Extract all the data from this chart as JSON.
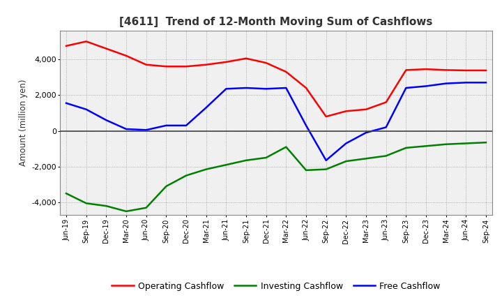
{
  "title": "[4611]  Trend of 12-Month Moving Sum of Cashflows",
  "ylabel": "Amount (million yen)",
  "background_color": "#ffffff",
  "plot_bg_color": "#f0f0f0",
  "grid_color": "#aaaaaa",
  "x_labels": [
    "Jun-19",
    "Sep-19",
    "Dec-19",
    "Mar-20",
    "Jun-20",
    "Sep-20",
    "Dec-20",
    "Mar-21",
    "Jun-21",
    "Sep-21",
    "Dec-21",
    "Mar-22",
    "Jun-22",
    "Sep-22",
    "Dec-22",
    "Mar-23",
    "Jun-23",
    "Sep-23",
    "Dec-23",
    "Mar-24",
    "Jun-24",
    "Sep-24"
  ],
  "operating": [
    4750,
    5000,
    4600,
    4200,
    3700,
    3600,
    3600,
    3700,
    3850,
    4050,
    3800,
    3300,
    2400,
    800,
    1100,
    1200,
    1600,
    3400,
    3450,
    3400,
    3380,
    3380
  ],
  "investing": [
    -3500,
    -4050,
    -4200,
    -4500,
    -4300,
    -3100,
    -2500,
    -2150,
    -1900,
    -1650,
    -1500,
    -900,
    -2200,
    -2150,
    -1700,
    -1550,
    -1400,
    -950,
    -850,
    -750,
    -700,
    -650
  ],
  "free": [
    1550,
    1200,
    600,
    100,
    50,
    300,
    300,
    1300,
    2350,
    2400,
    2350,
    2400,
    300,
    -1650,
    -700,
    -100,
    200,
    2400,
    2500,
    2650,
    2700,
    2700
  ],
  "operating_color": "#ff0000",
  "investing_color": "#008000",
  "free_color": "#0000ff",
  "ylim": [
    -4700,
    5600
  ],
  "yticks": [
    -4000,
    -2000,
    0,
    2000,
    4000
  ],
  "title_color": "#333333",
  "legend_labels": [
    "Operating Cashflow",
    "Investing Cashflow",
    "Free Cashflow"
  ]
}
